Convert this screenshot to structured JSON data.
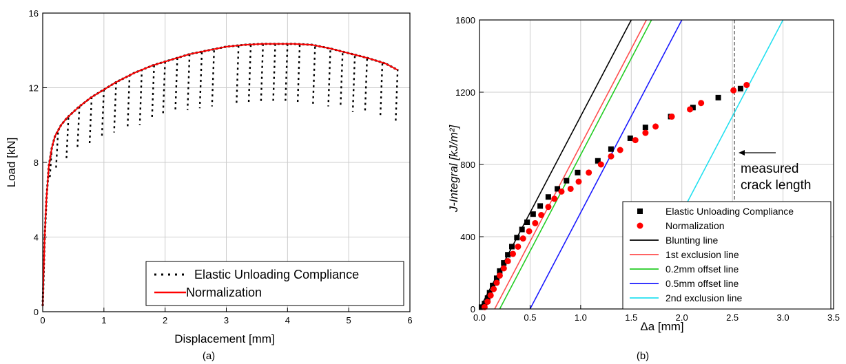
{
  "chart_data": [
    {
      "type": "line",
      "caption": "(a)",
      "xlabel": "Displacement [mm]",
      "ylabel": "Load [kN]",
      "xlim": [
        0,
        6
      ],
      "ylim": [
        0,
        16
      ],
      "xticks": [
        0,
        1,
        2,
        3,
        4,
        5,
        6
      ],
      "yticks": [
        0,
        4,
        8,
        12,
        16
      ],
      "grid": true,
      "legend_position": "bottom-right",
      "legend": [
        "Elastic Unloading Compliance",
        "Normalization"
      ],
      "series": [
        {
          "name": "Normalization",
          "color": "#ff0000",
          "style": "solid",
          "x": [
            0,
            0.03,
            0.06,
            0.1,
            0.15,
            0.2,
            0.3,
            0.4,
            0.6,
            0.8,
            1.0,
            1.2,
            1.5,
            1.8,
            2.1,
            2.4,
            2.7,
            3.0,
            3.3,
            3.6,
            3.9,
            4.1,
            4.4,
            4.7,
            5.0,
            5.3,
            5.6,
            5.8
          ],
          "y": [
            0.3,
            3.8,
            6.0,
            7.8,
            8.8,
            9.4,
            10.0,
            10.4,
            11.0,
            11.5,
            11.9,
            12.3,
            12.8,
            13.2,
            13.5,
            13.8,
            14.0,
            14.2,
            14.3,
            14.35,
            14.35,
            14.35,
            14.3,
            14.1,
            13.85,
            13.6,
            13.3,
            12.95
          ]
        },
        {
          "name": "Elastic Unloading Compliance",
          "color": "#000000",
          "style": "dotted",
          "unloading_cycles": [
            {
              "x": 0.15,
              "y_top": 8.8,
              "y_bottom": 7.2
            },
            {
              "x": 0.25,
              "y_top": 9.6,
              "y_bottom": 7.6
            },
            {
              "x": 0.42,
              "y_top": 10.4,
              "y_bottom": 8.1
            },
            {
              "x": 0.6,
              "y_top": 11.0,
              "y_bottom": 8.7
            },
            {
              "x": 0.8,
              "y_top": 11.5,
              "y_bottom": 9.0
            },
            {
              "x": 1.0,
              "y_top": 11.9,
              "y_bottom": 9.3
            },
            {
              "x": 1.2,
              "y_top": 12.3,
              "y_bottom": 9.6
            },
            {
              "x": 1.42,
              "y_top": 12.7,
              "y_bottom": 9.8
            },
            {
              "x": 1.62,
              "y_top": 13.0,
              "y_bottom": 10.0
            },
            {
              "x": 1.82,
              "y_top": 13.2,
              "y_bottom": 10.4
            },
            {
              "x": 2.0,
              "y_top": 13.4,
              "y_bottom": 10.6
            },
            {
              "x": 2.2,
              "y_top": 13.6,
              "y_bottom": 10.7
            },
            {
              "x": 2.4,
              "y_top": 13.8,
              "y_bottom": 10.8
            },
            {
              "x": 2.6,
              "y_top": 13.9,
              "y_bottom": 10.9
            },
            {
              "x": 2.8,
              "y_top": 14.0,
              "y_bottom": 11.0
            },
            {
              "x": 3.2,
              "y_top": 14.25,
              "y_bottom": 11.1
            },
            {
              "x": 3.4,
              "y_top": 14.3,
              "y_bottom": 11.2
            },
            {
              "x": 3.6,
              "y_top": 14.35,
              "y_bottom": 11.2
            },
            {
              "x": 3.8,
              "y_top": 14.35,
              "y_bottom": 11.3
            },
            {
              "x": 4.0,
              "y_top": 14.35,
              "y_bottom": 11.3
            },
            {
              "x": 4.2,
              "y_top": 14.3,
              "y_bottom": 11.2
            },
            {
              "x": 4.45,
              "y_top": 14.2,
              "y_bottom": 11.1
            },
            {
              "x": 4.7,
              "y_top": 14.0,
              "y_bottom": 11.0
            },
            {
              "x": 4.9,
              "y_top": 13.85,
              "y_bottom": 11.0
            },
            {
              "x": 5.1,
              "y_top": 13.7,
              "y_bottom": 10.7
            },
            {
              "x": 5.3,
              "y_top": 13.55,
              "y_bottom": 10.7
            },
            {
              "x": 5.55,
              "y_top": 13.3,
              "y_bottom": 10.4
            },
            {
              "x": 5.8,
              "y_top": 13.0,
              "y_bottom": 10.1
            }
          ]
        }
      ]
    },
    {
      "type": "scatter",
      "caption": "(b)",
      "xlabel": "Δa [mm]",
      "ylabel": "J-Integral [kJ/m²]",
      "xlim": [
        0,
        3.5
      ],
      "ylim": [
        0,
        1600
      ],
      "xticks": [
        "0.0",
        "0.5",
        "1.0",
        "1.5",
        "2.0",
        "2.5",
        "3.0",
        "3.5"
      ],
      "yticks": [
        0,
        400,
        800,
        1200,
        1600
      ],
      "grid": true,
      "legend_position": "bottom-right",
      "annotation": {
        "lines": [
          "measured",
          "crack length"
        ],
        "x": 2.52
      },
      "series": [
        {
          "name": "Elastic Unloading Compliance",
          "color": "#000000",
          "marker": "square",
          "points": [
            [
              0.02,
              10
            ],
            [
              0.05,
              30
            ],
            [
              0.08,
              60
            ],
            [
              0.1,
              90
            ],
            [
              0.13,
              130
            ],
            [
              0.17,
              170
            ],
            [
              0.2,
              210
            ],
            [
              0.24,
              255
            ],
            [
              0.28,
              300
            ],
            [
              0.32,
              345
            ],
            [
              0.37,
              395
            ],
            [
              0.42,
              440
            ],
            [
              0.47,
              480
            ],
            [
              0.53,
              525
            ],
            [
              0.6,
              570
            ],
            [
              0.68,
              620
            ],
            [
              0.77,
              665
            ],
            [
              0.86,
              710
            ],
            [
              0.97,
              755
            ],
            [
              1.17,
              820
            ],
            [
              1.3,
              885
            ],
            [
              1.49,
              945
            ],
            [
              1.64,
              1005
            ],
            [
              1.89,
              1065
            ],
            [
              2.11,
              1115
            ],
            [
              2.36,
              1170
            ],
            [
              2.58,
              1220
            ]
          ]
        },
        {
          "name": "Normalization",
          "color": "#ff0000",
          "marker": "circle",
          "points": [
            [
              0.03,
              10
            ],
            [
              0.06,
              40
            ],
            [
              0.09,
              75
            ],
            [
              0.12,
              110
            ],
            [
              0.15,
              145
            ],
            [
              0.18,
              185
            ],
            [
              0.22,
              225
            ],
            [
              0.26,
              265
            ],
            [
              0.31,
              305
            ],
            [
              0.36,
              345
            ],
            [
              0.41,
              390
            ],
            [
              0.47,
              430
            ],
            [
              0.53,
              475
            ],
            [
              0.59,
              520
            ],
            [
              0.66,
              565
            ],
            [
              0.72,
              610
            ],
            [
              0.79,
              650
            ],
            [
              0.88,
              665
            ],
            [
              0.96,
              705
            ],
            [
              1.06,
              755
            ],
            [
              1.18,
              800
            ],
            [
              1.28,
              845
            ],
            [
              1.37,
              880
            ],
            [
              1.52,
              935
            ],
            [
              1.62,
              975
            ],
            [
              1.72,
              1010
            ],
            [
              1.88,
              1065
            ],
            [
              2.06,
              1105
            ],
            [
              2.17,
              1140
            ],
            [
              2.49,
              1210
            ],
            [
              2.62,
              1240
            ]
          ]
        },
        {
          "name": "Blunting line",
          "color": "#000000",
          "type": "line",
          "x": [
            0.0,
            1.5
          ],
          "y": [
            0,
            1600
          ]
        },
        {
          "name": "1st exclusion line",
          "color": "#ff4d4d",
          "type": "line",
          "x": [
            0.15,
            1.65
          ],
          "y": [
            0,
            1600
          ]
        },
        {
          "name": "0.2mm offset line",
          "color": "#22cc22",
          "type": "line",
          "x": [
            0.2,
            1.7
          ],
          "y": [
            0,
            1600
          ]
        },
        {
          "name": "0.5mm offset line",
          "color": "#1a1aff",
          "type": "line",
          "x": [
            0.5,
            2.0
          ],
          "y": [
            0,
            1600
          ]
        },
        {
          "name": "2nd exclusion line",
          "color": "#22e0f0",
          "type": "line",
          "x": [
            1.5,
            3.0
          ],
          "y": [
            0,
            1600
          ]
        }
      ]
    }
  ]
}
